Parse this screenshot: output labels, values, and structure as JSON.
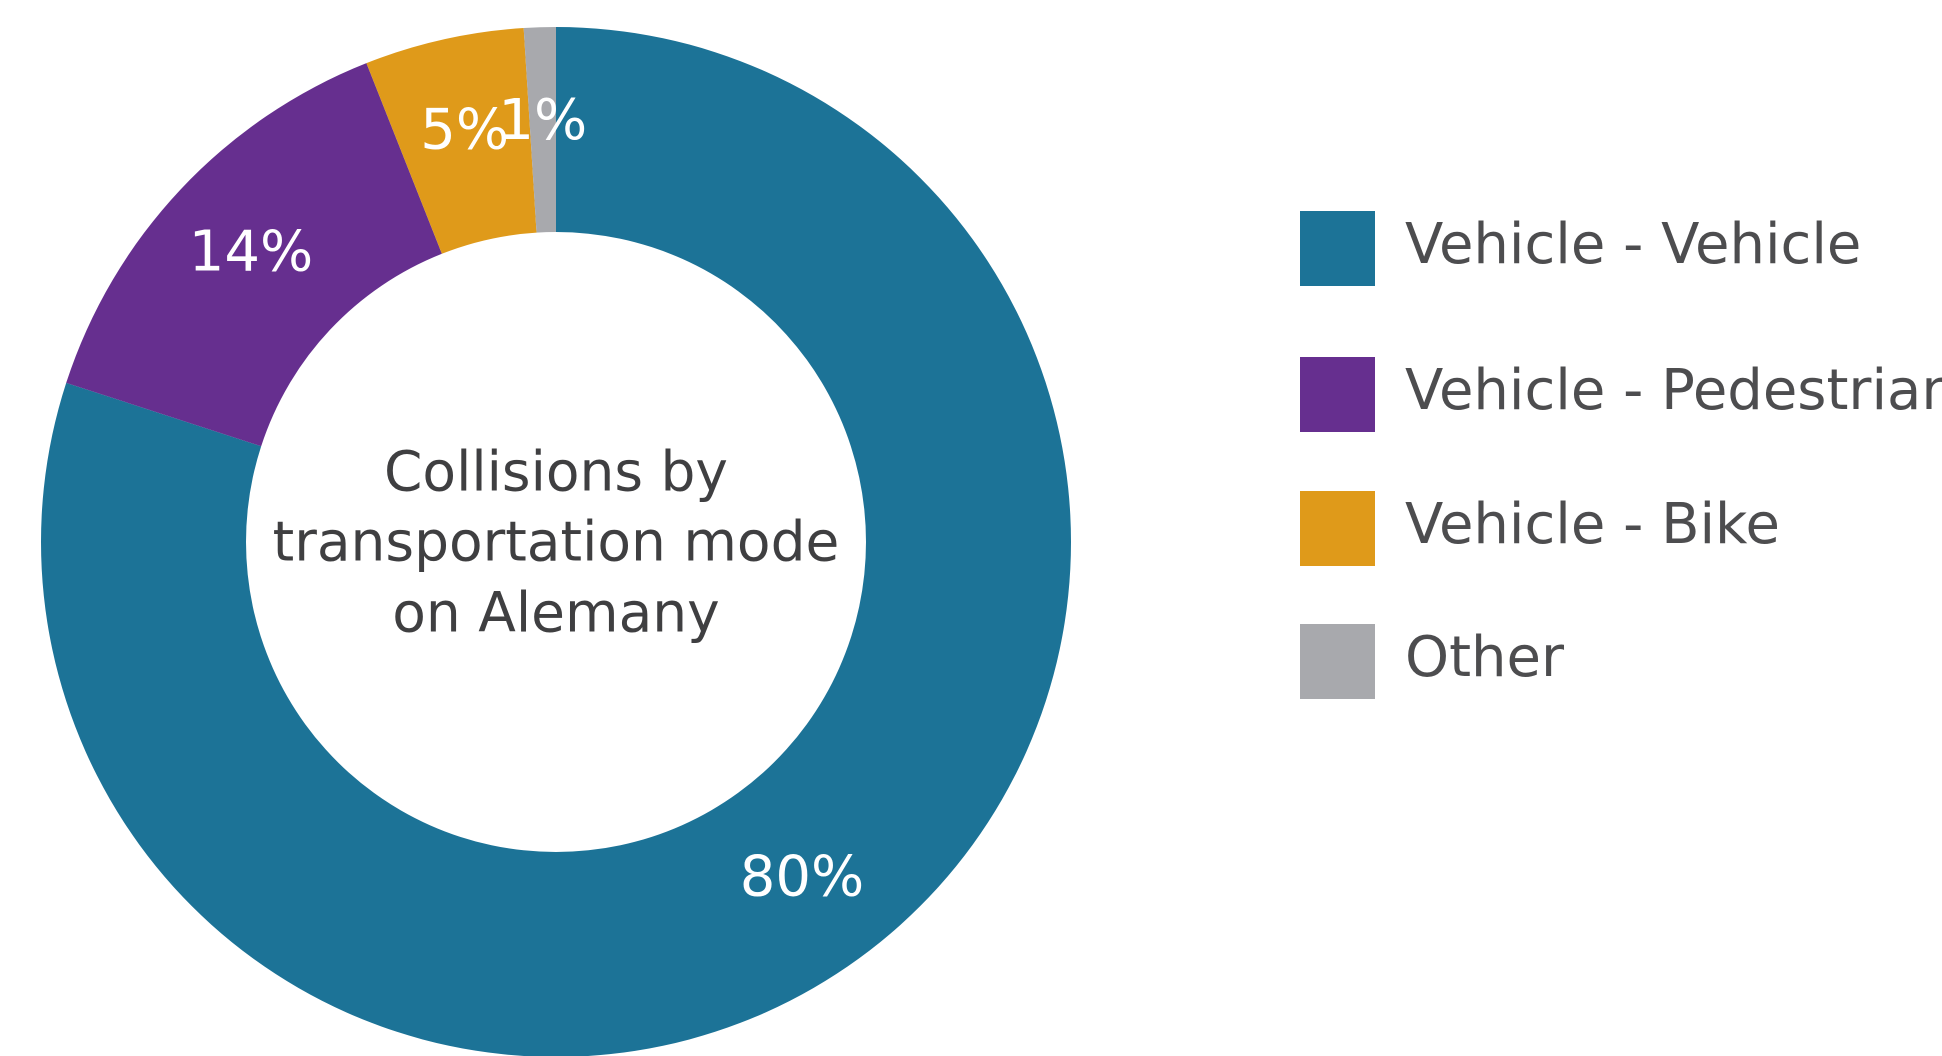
{
  "chart_data": {
    "type": "pie",
    "title": "Collisions by transportation mode on Alemany",
    "categories": [
      "Vehicle - Vehicle",
      "Vehicle - Pedestrian",
      "Vehicle - Bike",
      "Other"
    ],
    "values": [
      80,
      14,
      5,
      1
    ],
    "value_labels": [
      "80%",
      "14%",
      "5%",
      "1%"
    ],
    "colors": [
      "#1c7397",
      "#662f8f",
      "#df9a1a",
      "#a8a9ad"
    ],
    "legend": "right"
  }
}
